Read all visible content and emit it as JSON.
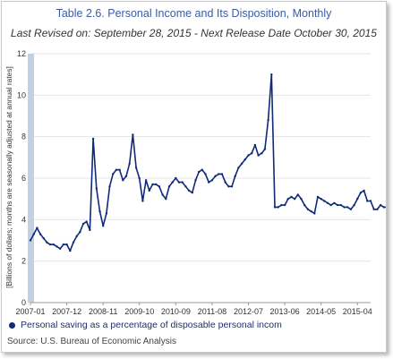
{
  "title": "Table 2.6. Personal Income and Its Disposition, Monthly",
  "subtitle": "Last Revised on: September 28, 2015 - Next Release Date October 30, 2015",
  "source": "Source: U.S. Bureau of Economic  Analysis",
  "legend_label": "Personal saving as a percentage of disposable personal incom",
  "colors": {
    "line": "#102a78",
    "band": "#c3d0e4",
    "title": "#3b5ba8",
    "grid": "#e4e4e4"
  },
  "chart_data": {
    "type": "line",
    "title": "Table 2.6. Personal Income and Its Disposition, Monthly",
    "ylabel": "[Billions of dollars; months are seasonally adjusted at annual rates]",
    "xlabel": "",
    "ylim": [
      0,
      12
    ],
    "yticks": [
      0,
      2,
      4,
      6,
      8,
      10,
      12
    ],
    "x_tick_labels": [
      "2007-01",
      "2007-12",
      "2008-11",
      "2009-10",
      "2010-09",
      "2011-08",
      "2012-07",
      "2013-06",
      "2014-05",
      "2015-04"
    ],
    "x_start": "2007-01",
    "x_end": "2015-08",
    "grid": true,
    "legend_position": "bottom",
    "series": [
      {
        "name": "Personal saving as a percentage of disposable personal incom",
        "values": [
          3.0,
          3.3,
          3.6,
          3.3,
          3.1,
          2.9,
          2.8,
          2.8,
          2.7,
          2.6,
          2.8,
          2.8,
          2.5,
          2.9,
          3.2,
          3.4,
          3.8,
          3.9,
          3.5,
          7.9,
          5.5,
          4.4,
          3.7,
          4.3,
          5.6,
          6.2,
          6.4,
          6.4,
          5.9,
          6.1,
          6.7,
          8.1,
          6.5,
          6.0,
          4.9,
          5.9,
          5.4,
          5.7,
          5.7,
          5.6,
          5.2,
          5.0,
          5.6,
          5.8,
          6.0,
          5.8,
          5.8,
          5.6,
          5.4,
          5.3,
          5.9,
          6.3,
          6.4,
          6.2,
          5.8,
          5.9,
          6.1,
          6.2,
          6.2,
          5.8,
          5.6,
          5.6,
          6.1,
          6.5,
          6.7,
          6.9,
          7.1,
          7.2,
          7.6,
          7.1,
          7.2,
          7.4,
          8.8,
          11.0,
          4.6,
          4.6,
          4.7,
          4.7,
          5.0,
          5.1,
          5.0,
          5.2,
          5.0,
          4.7,
          4.5,
          4.4,
          4.3,
          5.1,
          5.0,
          4.9,
          4.8,
          4.7,
          4.8,
          4.7,
          4.7,
          4.6,
          4.6,
          4.5,
          4.7,
          5.0,
          5.3,
          5.4,
          4.9,
          4.9,
          4.5,
          4.5,
          4.7,
          4.6,
          4.6
        ]
      }
    ]
  }
}
